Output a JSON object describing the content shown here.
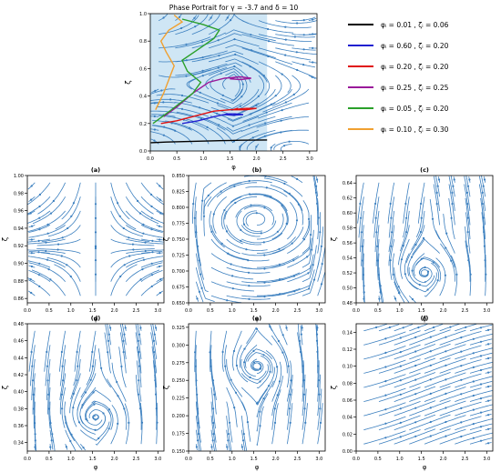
{
  "chart_data": [
    {
      "id": "main",
      "type": "streamplot",
      "title": "Phase Portrait for γ = -3.7 and δ = 10",
      "xlabel": "φ",
      "ylabel": "ζ",
      "xlim": [
        0,
        3.14
      ],
      "ylim": [
        0,
        1.0
      ],
      "xticks": [
        "0.0",
        "0.5",
        "1.0",
        "1.5",
        "2.0",
        "2.5",
        "3.0"
      ],
      "yticks": [
        "0.0",
        "0.2",
        "0.4",
        "0.6",
        "0.8",
        "1.0"
      ],
      "shaded_region": {
        "x": [
          0,
          2.2
        ],
        "y": [
          0,
          1.0
        ],
        "color": "#cfe6f5"
      },
      "stream_color": "#3b7fbf",
      "legend_position": "right",
      "series": [
        {
          "label": "φᵢ = 0.01 , ζᵢ = 0.06",
          "color": "#000000",
          "points": [
            [
              0.01,
              0.06
            ],
            [
              0.3,
              0.065
            ],
            [
              0.8,
              0.07
            ],
            [
              1.3,
              0.075
            ],
            [
              1.7,
              0.078
            ],
            [
              2.2,
              0.08
            ]
          ]
        },
        {
          "label": "φᵢ = 0.60 , ζᵢ = 0.20",
          "color": "#2020d0",
          "points": [
            [
              0.6,
              0.2
            ],
            [
              0.9,
              0.22
            ],
            [
              1.2,
              0.25
            ],
            [
              1.45,
              0.27
            ],
            [
              1.6,
              0.27
            ],
            [
              1.75,
              0.265
            ],
            [
              1.55,
              0.26
            ],
            [
              1.4,
              0.265
            ],
            [
              1.55,
              0.27
            ]
          ]
        },
        {
          "label": "φᵢ = 0.20 , ζᵢ = 0.20",
          "color": "#e01010",
          "points": [
            [
              0.2,
              0.2
            ],
            [
              0.5,
              0.22
            ],
            [
              0.9,
              0.26
            ],
            [
              1.2,
              0.29
            ],
            [
              1.5,
              0.3
            ],
            [
              1.8,
              0.31
            ],
            [
              2.0,
              0.31
            ],
            [
              1.8,
              0.3
            ],
            [
              1.55,
              0.3
            ],
            [
              1.65,
              0.31
            ]
          ]
        },
        {
          "label": "φᵢ = 0.25 , ζᵢ = 0.25",
          "color": "#9a1a9a",
          "points": [
            [
              0.25,
              0.25
            ],
            [
              0.5,
              0.32
            ],
            [
              0.8,
              0.42
            ],
            [
              1.1,
              0.5
            ],
            [
              1.4,
              0.53
            ],
            [
              1.7,
              0.54
            ],
            [
              1.9,
              0.53
            ],
            [
              1.7,
              0.52
            ],
            [
              1.5,
              0.525
            ],
            [
              1.6,
              0.535
            ]
          ]
        },
        {
          "label": "φᵢ = 0.05 , ζᵢ = 0.20",
          "color": "#2aa02a",
          "points": [
            [
              0.05,
              0.2
            ],
            [
              0.4,
              0.3
            ],
            [
              0.8,
              0.42
            ],
            [
              0.95,
              0.5
            ],
            [
              0.7,
              0.58
            ],
            [
              0.6,
              0.66
            ],
            [
              0.9,
              0.74
            ],
            [
              1.2,
              0.82
            ],
            [
              1.3,
              0.88
            ],
            [
              1.0,
              0.92
            ],
            [
              0.6,
              0.96
            ]
          ]
        },
        {
          "label": "φᵢ = 0.10 , ζᵢ = 0.30",
          "color": "#f0a030",
          "points": [
            [
              0.1,
              0.3
            ],
            [
              0.25,
              0.42
            ],
            [
              0.38,
              0.55
            ],
            [
              0.45,
              0.62
            ],
            [
              0.3,
              0.72
            ],
            [
              0.2,
              0.8
            ],
            [
              0.35,
              0.88
            ],
            [
              0.6,
              0.94
            ],
            [
              0.45,
              0.99
            ]
          ]
        }
      ]
    },
    {
      "id": "a",
      "type": "streamplot",
      "title": "(a)",
      "xlabel": "φ",
      "ylabel": "ζ",
      "xlim": [
        0,
        3.14
      ],
      "ylim": [
        0.855,
        1.0
      ],
      "pattern": "saddle",
      "saddle": [
        1.57,
        0.91
      ],
      "xticks": [
        "0.0",
        "0.5",
        "1.0",
        "1.5",
        "2.0",
        "2.5",
        "3.0"
      ],
      "yticks": [
        "0.86",
        "0.88",
        "0.90",
        "0.92",
        "0.94",
        "0.96",
        "0.98",
        "1.00"
      ]
    },
    {
      "id": "b",
      "type": "streamplot",
      "title": "(b)",
      "xlabel": "φ",
      "ylabel": "ζ",
      "xlim": [
        0,
        3.14
      ],
      "ylim": [
        0.65,
        0.85
      ],
      "pattern": "center",
      "center": [
        1.57,
        0.78
      ],
      "xticks": [
        "0.0",
        "0.5",
        "1.0",
        "1.5",
        "2.0",
        "2.5",
        "3.0"
      ],
      "yticks": [
        "0.650",
        "0.675",
        "0.700",
        "0.725",
        "0.750",
        "0.775",
        "0.800",
        "0.825",
        "0.850"
      ]
    },
    {
      "id": "c",
      "type": "streamplot",
      "title": "(c)",
      "xlabel": "φ",
      "ylabel": "ζ",
      "xlim": [
        0,
        3.14
      ],
      "ylim": [
        0.48,
        0.65
      ],
      "pattern": "spiral-saddle",
      "spiral": [
        1.57,
        0.52
      ],
      "saddle": [
        1.57,
        0.6
      ],
      "xticks": [
        "0.0",
        "0.5",
        "1.0",
        "1.5",
        "2.0",
        "2.5",
        "3.0"
      ],
      "yticks": [
        "0.48",
        "0.50",
        "0.52",
        "0.54",
        "0.56",
        "0.58",
        "0.60",
        "0.62",
        "0.64"
      ]
    },
    {
      "id": "d",
      "type": "streamplot",
      "title": "(d)",
      "xlabel": "φ",
      "ylabel": "ζ",
      "xlim": [
        0,
        3.14
      ],
      "ylim": [
        0.33,
        0.48
      ],
      "pattern": "spiral-saddle",
      "spiral": [
        1.57,
        0.37
      ],
      "saddle": [
        1.57,
        0.43
      ],
      "xticks": [
        "0.0",
        "0.5",
        "1.0",
        "1.5",
        "2.0",
        "2.5",
        "3.0"
      ],
      "yticks": [
        "0.34",
        "0.36",
        "0.38",
        "0.40",
        "0.42",
        "0.44",
        "0.46",
        "0.48"
      ]
    },
    {
      "id": "e",
      "type": "streamplot",
      "title": "(e)",
      "xlabel": "φ",
      "ylabel": "ζ",
      "xlim": [
        0,
        3.14
      ],
      "ylim": [
        0.15,
        0.33
      ],
      "pattern": "spiral",
      "spiral": [
        1.57,
        0.27
      ],
      "xticks": [
        "0.0",
        "0.5",
        "1.0",
        "1.5",
        "2.0",
        "2.5",
        "3.0"
      ],
      "yticks": [
        "0.150",
        "0.175",
        "0.200",
        "0.225",
        "0.250",
        "0.275",
        "0.300",
        "0.325"
      ]
    },
    {
      "id": "f",
      "type": "streamplot",
      "title": "(f)",
      "xlabel": "φ",
      "ylabel": "ζ",
      "xlim": [
        0,
        3.14
      ],
      "ylim": [
        0,
        0.15
      ],
      "pattern": "shear",
      "xticks": [
        "0.0",
        "0.5",
        "1.0",
        "1.5",
        "2.0",
        "2.5",
        "3.0"
      ],
      "yticks": [
        "0.00",
        "0.02",
        "0.04",
        "0.06",
        "0.08",
        "0.10",
        "0.12",
        "0.14"
      ]
    }
  ]
}
